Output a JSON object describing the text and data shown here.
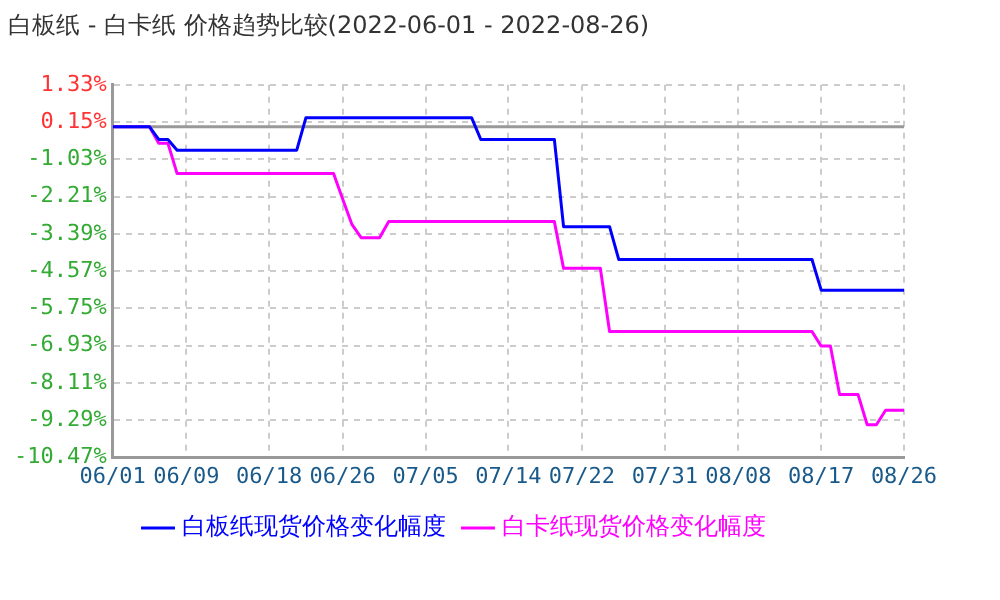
{
  "chart_data": {
    "type": "line",
    "title": "白板纸 - 白卡纸 价格趋势比较(2022-06-01 - 2022-08-26)",
    "series": [
      {
        "name": "白板纸现货价格变化幅度",
        "color": "#0000ff",
        "x": [
          "2022-06-01",
          "2022-06-05",
          "2022-06-06",
          "2022-06-07",
          "2022-06-08",
          "2022-06-21",
          "2022-06-22",
          "2022-07-10",
          "2022-07-11",
          "2022-07-19",
          "2022-07-20",
          "2022-07-25",
          "2022-07-26",
          "2022-08-16",
          "2022-08-17",
          "2022-08-26"
        ],
        "values": [
          0,
          0,
          -0.4,
          -0.4,
          -0.74,
          -0.74,
          0.29,
          0.29,
          -0.4,
          -0.4,
          -3.16,
          -3.16,
          -4.2,
          -4.2,
          -5.17,
          -5.17
        ]
      },
      {
        "name": "白卡纸现货价格变化幅度",
        "color": "#ff00ff",
        "x": [
          "2022-06-01",
          "2022-06-05",
          "2022-06-06",
          "2022-06-07",
          "2022-06-08",
          "2022-06-25",
          "2022-06-26",
          "2022-06-27",
          "2022-06-28",
          "2022-06-30",
          "2022-07-01",
          "2022-07-19",
          "2022-07-20",
          "2022-07-24",
          "2022-07-25",
          "2022-08-16",
          "2022-08-17",
          "2022-08-18",
          "2022-08-19",
          "2022-08-21",
          "2022-08-22",
          "2022-08-23",
          "2022-08-24",
          "2022-08-26"
        ],
        "values": [
          0,
          0,
          -0.52,
          -0.52,
          -1.48,
          -1.48,
          -2.29,
          -3.09,
          -3.51,
          -3.51,
          -3.0,
          -3.0,
          -4.48,
          -4.48,
          -6.48,
          -6.48,
          -6.94,
          -6.94,
          -8.47,
          -8.47,
          -9.43,
          -9.43,
          -8.97,
          -8.97
        ]
      }
    ],
    "xlim": [
      "2022-06-01",
      "2022-08-26"
    ],
    "xticks": [
      {
        "value": "2022-06-01",
        "label": "06/01"
      },
      {
        "value": "2022-06-09",
        "label": "06/09"
      },
      {
        "value": "2022-06-18",
        "label": "06/18"
      },
      {
        "value": "2022-06-26",
        "label": "06/26"
      },
      {
        "value": "2022-07-05",
        "label": "07/05"
      },
      {
        "value": "2022-07-14",
        "label": "07/14"
      },
      {
        "value": "2022-07-22",
        "label": "07/22"
      },
      {
        "value": "2022-07-31",
        "label": "07/31"
      },
      {
        "value": "2022-08-08",
        "label": "08/08"
      },
      {
        "value": "2022-08-17",
        "label": "08/17"
      },
      {
        "value": "2022-08-26",
        "label": "08/26"
      }
    ],
    "ylim": [
      -10.47,
      1.33
    ],
    "yticks": [
      {
        "value": -10.47,
        "label": "-10.47%"
      },
      {
        "value": -9.29,
        "label": "-9.29%"
      },
      {
        "value": -8.11,
        "label": "-8.11%"
      },
      {
        "value": -6.93,
        "label": "-6.93%"
      },
      {
        "value": -5.75,
        "label": "-5.75%"
      },
      {
        "value": -4.57,
        "label": "-4.57%"
      },
      {
        "value": -3.39,
        "label": "-3.39%"
      },
      {
        "value": -2.21,
        "label": "-2.21%"
      },
      {
        "value": -1.03,
        "label": "-1.03%"
      },
      {
        "value": 0.15,
        "label": "0.15%"
      },
      {
        "value": 1.33,
        "label": "1.33%"
      }
    ],
    "ref_lines": [
      {
        "axis": "y",
        "value": 0,
        "label": null,
        "color": "#999999"
      }
    ],
    "grid": true,
    "legend": "bottom",
    "marker": "none",
    "line_style": "solid"
  }
}
